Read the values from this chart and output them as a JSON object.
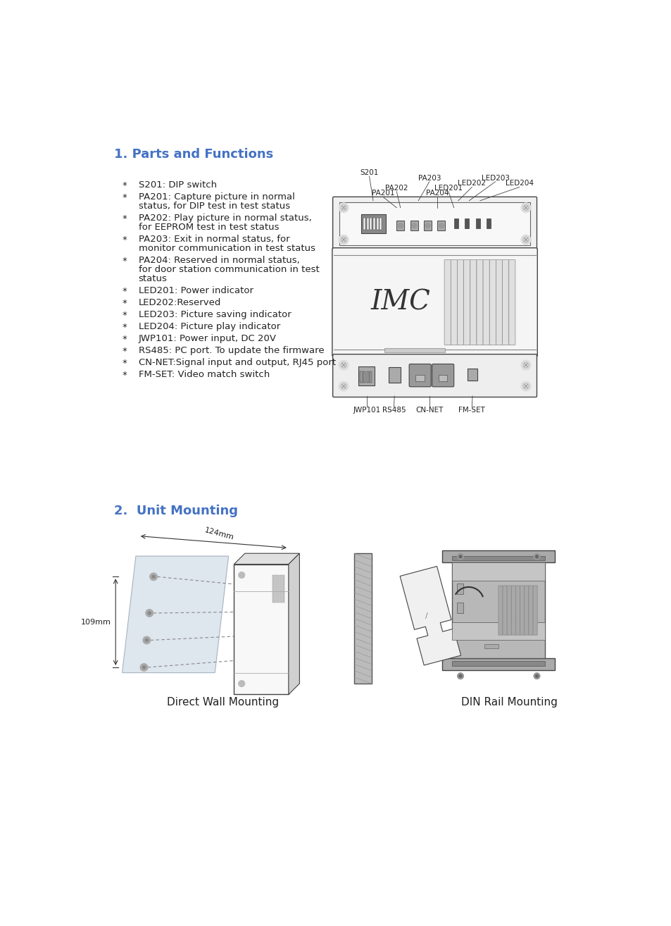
{
  "title1": "1. Parts and Functions",
  "title2": "2.  Unit Mounting",
  "title_color": "#4472c4",
  "title_fontsize": 13,
  "bg_color": "#ffffff",
  "text_color": "#222222",
  "bullet_items": [
    [
      "S201: DIP switch"
    ],
    [
      "PA201: Capture picture in normal",
      "status, for DIP test in test status"
    ],
    [
      "PA202: Play picture in normal status,",
      "for EEPROM test in test status"
    ],
    [
      "PA203: Exit in normal status, for",
      "monitor communication in test status"
    ],
    [
      "PA204: Reserved in normal status,",
      "for door station communication in test",
      "status"
    ],
    [
      "LED201: Power indicator"
    ],
    [
      "LED202:Reserved"
    ],
    [
      "LED203: Picture saving indicator"
    ],
    [
      "LED204: Picture play indicator"
    ],
    [
      "JWP101: Power input, DC 20V"
    ],
    [
      "RS485: PC port. To update the firmware"
    ],
    [
      "CN-NET:Signal input and output, RJ45 port"
    ],
    [
      "FM-SET: Video match switch"
    ]
  ],
  "caption_left": "Direct Wall Mounting",
  "caption_right": "DIN Rail Mounting",
  "label_124mm": "124mm",
  "label_109mm": "109mm"
}
